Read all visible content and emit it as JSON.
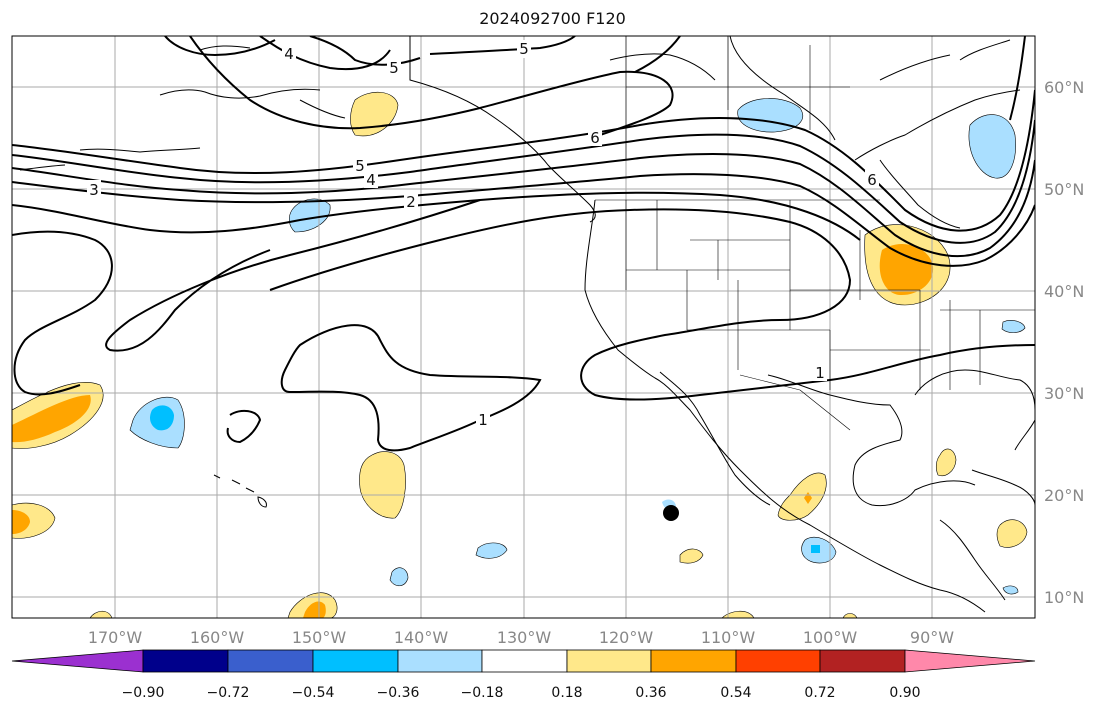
{
  "map": {
    "title": "2024092700 F120",
    "lon_labels": [
      "170°W",
      "160°W",
      "150°W",
      "140°W",
      "130°W",
      "120°W",
      "110°W",
      "100°W",
      "90°W"
    ],
    "lat_labels": [
      "60°N",
      "50°N",
      "40°N",
      "30°N",
      "20°N",
      "10°N"
    ],
    "contour_labels": [
      "4",
      "5",
      "5",
      "6",
      "5",
      "4",
      "3",
      "2",
      "6",
      "1",
      "1"
    ],
    "colorbar": {
      "ticks": [
        "−0.90",
        "−0.72",
        "−0.54",
        "−0.36",
        "−0.18",
        "0.18",
        "0.36",
        "0.54",
        "0.72",
        "0.90"
      ],
      "colors": [
        "#9b30d0",
        "#00008b",
        "#3a5fcd",
        "#00bfff",
        "#aadfff",
        "#ffffff",
        "#ffe88a",
        "#ffa500",
        "#ff4000",
        "#b22222",
        "#ff88aa"
      ]
    },
    "colors": {
      "light_blue": "#aadfff",
      "blue": "#00bfff",
      "light_yellow": "#ffe88a",
      "orange": "#ffa500"
    }
  }
}
